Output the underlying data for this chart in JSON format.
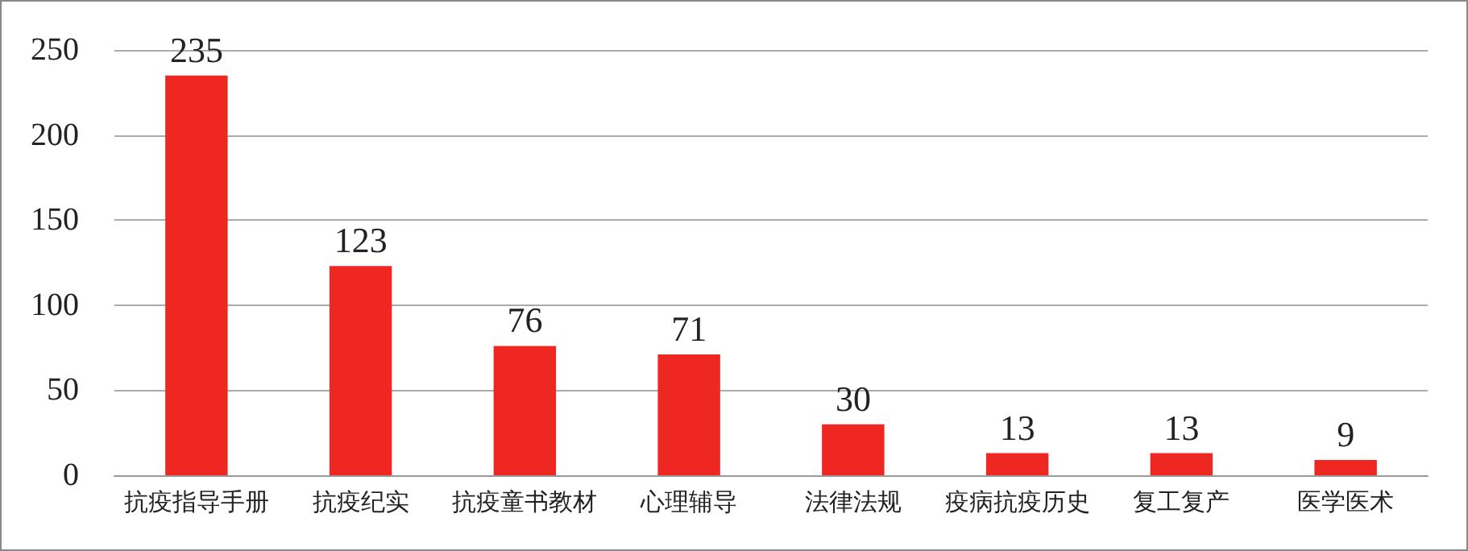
{
  "chart_data": {
    "type": "bar",
    "categories": [
      "抗疫指导手册",
      "抗疫纪实",
      "抗疫童书教材",
      "心理辅导",
      "法律法规",
      "疫病抗疫历史",
      "复工复产",
      "医学医术"
    ],
    "values": [
      235,
      123,
      76,
      71,
      30,
      13,
      13,
      9
    ],
    "color": "#ee2722",
    "ylim": [
      0,
      250
    ],
    "yticks": [
      0,
      50,
      100,
      150,
      200,
      250
    ],
    "grid": "y",
    "data_labels": true
  }
}
